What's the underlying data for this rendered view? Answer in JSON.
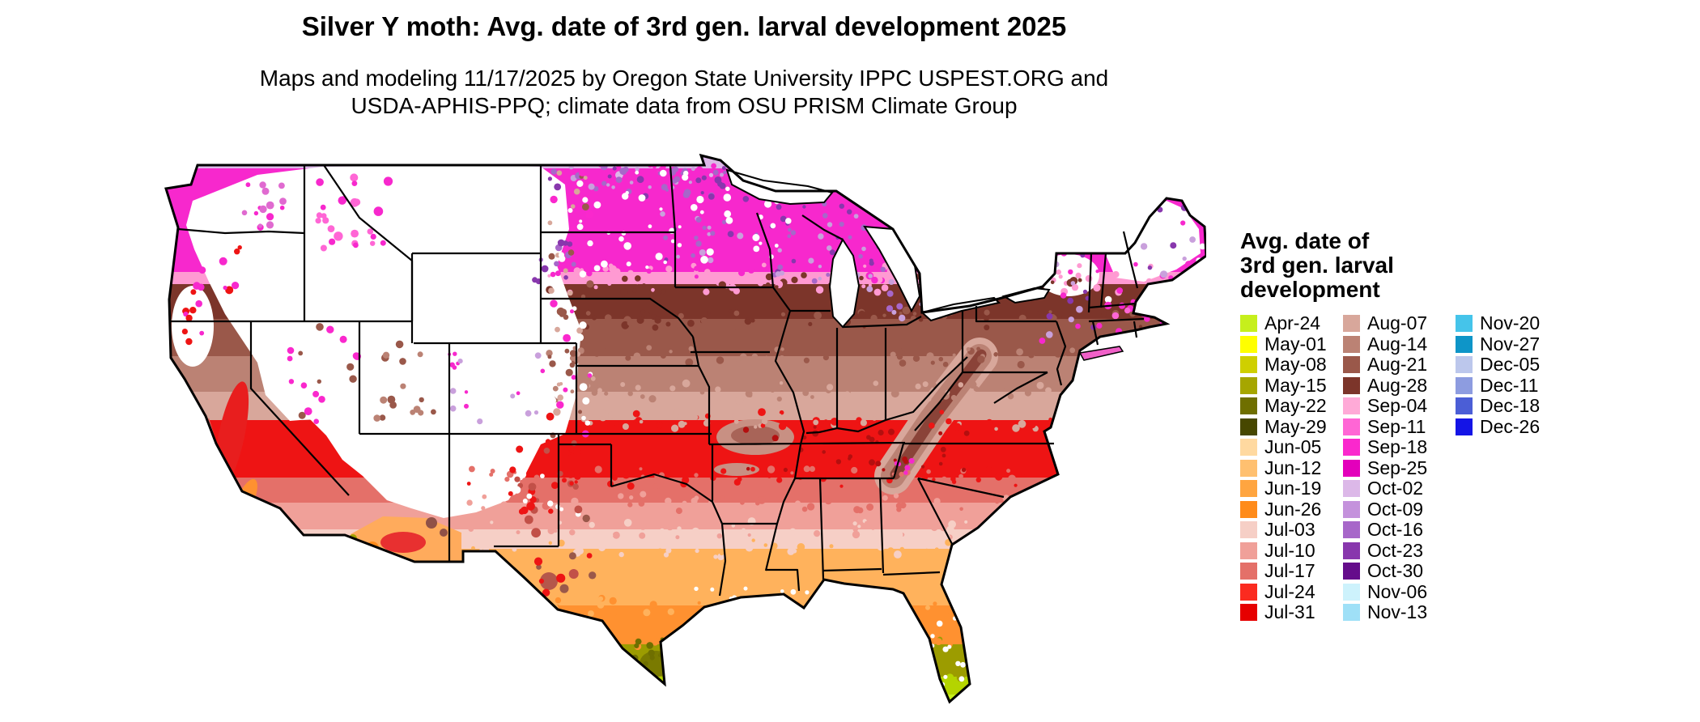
{
  "title": "Silver Y moth: Avg. date of 3rd gen. larval development 2025",
  "subtitle_line1": "Maps and modeling 11/17/2025 by Oregon State University IPPC USPEST.ORG and",
  "subtitle_line2": "USDA-APHIS-PPQ; climate data from OSU PRISM Climate Group",
  "legend": {
    "title_line1": "Avg. date of",
    "title_line2": "3rd gen. larval",
    "title_line3": "development",
    "columns": [
      {
        "entries": [
          {
            "label": "Apr-24",
            "color": "#c6ef1c"
          },
          {
            "label": "May-01",
            "color": "#ffff00"
          },
          {
            "label": "May-08",
            "color": "#cfcf00"
          },
          {
            "label": "May-15",
            "color": "#a6a600"
          },
          {
            "label": "May-22",
            "color": "#6f6f00"
          },
          {
            "label": "May-29",
            "color": "#474700"
          },
          {
            "label": "Jun-05",
            "color": "#ffd9a0"
          },
          {
            "label": "Jun-12",
            "color": "#ffc070"
          },
          {
            "label": "Jun-19",
            "color": "#ffa540"
          },
          {
            "label": "Jun-26",
            "color": "#ff8b1a"
          },
          {
            "label": "Jul-03",
            "color": "#f6cfc6"
          },
          {
            "label": "Jul-10",
            "color": "#f0a099"
          },
          {
            "label": "Jul-17",
            "color": "#e47069"
          },
          {
            "label": "Jul-24",
            "color": "#fb2b20"
          },
          {
            "label": "Jul-31",
            "color": "#e60000"
          }
        ]
      },
      {
        "entries": [
          {
            "label": "Aug-07",
            "color": "#d8a79b"
          },
          {
            "label": "Aug-14",
            "color": "#bb8274"
          },
          {
            "label": "Aug-21",
            "color": "#9a584a"
          },
          {
            "label": "Aug-28",
            "color": "#7c352a"
          },
          {
            "label": "Sep-04",
            "color": "#ffaad7"
          },
          {
            "label": "Sep-11",
            "color": "#ff66d5"
          },
          {
            "label": "Sep-18",
            "color": "#fa28cd"
          },
          {
            "label": "Sep-25",
            "color": "#e300bb"
          },
          {
            "label": "Oct-02",
            "color": "#dcb8e8"
          },
          {
            "label": "Oct-09",
            "color": "#c492dc"
          },
          {
            "label": "Oct-16",
            "color": "#a767c9"
          },
          {
            "label": "Oct-23",
            "color": "#8837ad"
          },
          {
            "label": "Oct-30",
            "color": "#650d8b"
          },
          {
            "label": "Nov-06",
            "color": "#cdf2fc"
          },
          {
            "label": "Nov-13",
            "color": "#9fe0f7"
          }
        ]
      },
      {
        "entries": [
          {
            "label": "Nov-20",
            "color": "#45c4ea"
          },
          {
            "label": "Nov-27",
            "color": "#0e95c8"
          },
          {
            "label": "Dec-05",
            "color": "#bcc7ec"
          },
          {
            "label": "Dec-11",
            "color": "#8d9ce0"
          },
          {
            "label": "Dec-18",
            "color": "#4b5ed6"
          },
          {
            "label": "Dec-26",
            "color": "#1414e6"
          }
        ]
      }
    ]
  }
}
